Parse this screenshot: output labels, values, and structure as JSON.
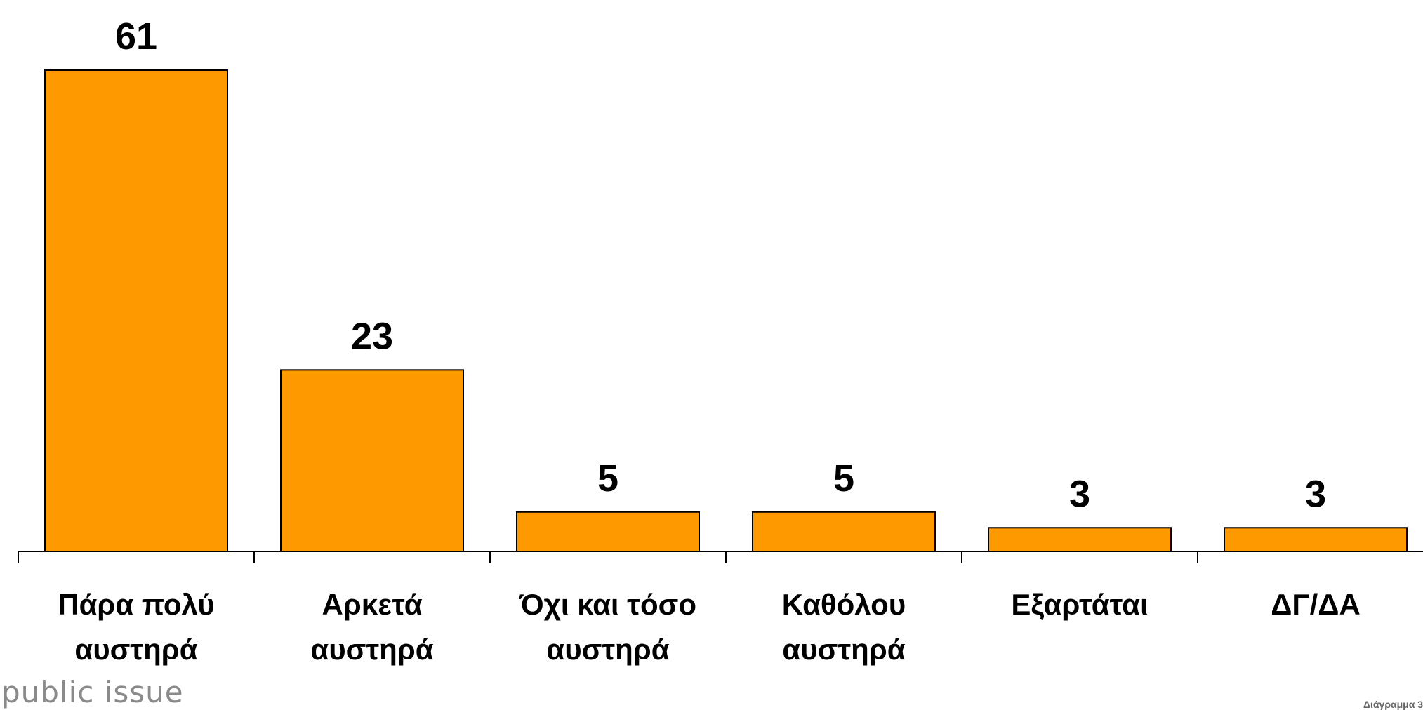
{
  "chart_data": {
    "type": "bar",
    "categories": [
      "Πάρα πολύ\nαυστηρά",
      "Αρκετά\nαυστηρά",
      "Όχι και τόσο\nαυστηρά",
      "Καθόλου\nαυστηρά",
      "Εξαρτάται",
      "ΔΓ/ΔΑ"
    ],
    "values": [
      61,
      23,
      5,
      5,
      3,
      3
    ],
    "color": "#ff9900"
  },
  "footer": {
    "brand": "public issue",
    "note": "Διάγραμμα 3"
  }
}
